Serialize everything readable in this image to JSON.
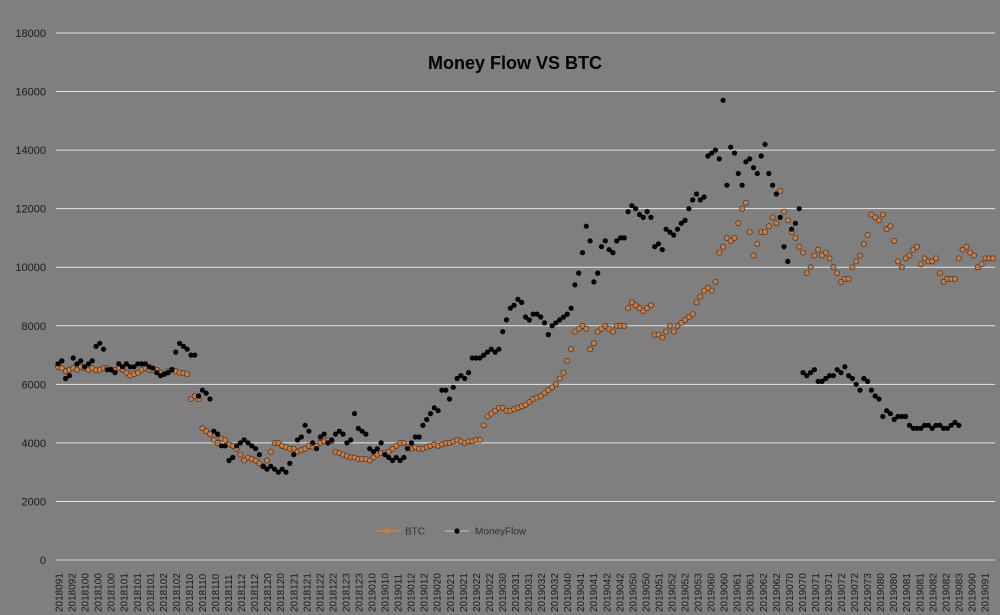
{
  "chart_data": {
    "type": "line",
    "title": "Money Flow VS BTC",
    "xlabel": "",
    "ylabel": "",
    "ylim": [
      0,
      18000
    ],
    "yticks": [
      0,
      2000,
      4000,
      6000,
      8000,
      10000,
      12000,
      14000,
      16000,
      18000
    ],
    "grid": true,
    "legend_position": "bottom-left",
    "x_tick_labels": [
      "2018091",
      "2018092",
      "2018100",
      "2018100",
      "2018100",
      "2018101",
      "2018101",
      "2018101",
      "2018102",
      "2018102",
      "2018110",
      "2018110",
      "2018110",
      "2018111",
      "2018112",
      "2018112",
      "2018120",
      "2018120",
      "2018121",
      "2018121",
      "2018122",
      "2018122",
      "2018123",
      "2018123",
      "2019010",
      "2019010",
      "2019011",
      "2019012",
      "2019012",
      "2019020",
      "2019021",
      "2019021",
      "2019022",
      "2019022",
      "2019030",
      "2019031",
      "2019031",
      "2019032",
      "2019032",
      "2019040",
      "2019041",
      "2019041",
      "2019042",
      "2019042",
      "2019050",
      "2019050",
      "2019051",
      "2019052",
      "2019052",
      "2019053",
      "2019060",
      "2019060",
      "2019061",
      "2019061",
      "2019062",
      "2019062",
      "2019070",
      "2019070",
      "2019071",
      "2019071",
      "2019072",
      "2019072",
      "2019073",
      "2019080",
      "2019080",
      "2019081",
      "2019081",
      "2019082",
      "2019082",
      "2019083",
      "2019090",
      "2019091"
    ],
    "series": [
      {
        "name": "BTC",
        "color": "#d07a3a",
        "values": [
          6600,
          6550,
          6450,
          6500,
          6550,
          6500,
          6600,
          6550,
          6500,
          6550,
          6480,
          6500,
          6550,
          6550,
          6500,
          6480,
          6550,
          6500,
          6400,
          6300,
          6350,
          6400,
          6500,
          6550,
          6500,
          6480,
          6500,
          6400,
          6350,
          6450,
          6500,
          6450,
          6400,
          6380,
          6350,
          5500,
          5600,
          5500,
          4500,
          4400,
          4300,
          4100,
          4000,
          4150,
          4100,
          3950,
          3900,
          3800,
          3600,
          3400,
          3500,
          3450,
          3400,
          3300,
          3200,
          3400,
          3700,
          4000,
          4000,
          3900,
          3850,
          3800,
          3800,
          3700,
          3750,
          3800,
          3900,
          3850,
          3900,
          4000,
          4050,
          4100,
          4050,
          3700,
          3650,
          3600,
          3550,
          3500,
          3500,
          3450,
          3450,
          3450,
          3400,
          3500,
          3600,
          3650,
          3650,
          3700,
          3800,
          3900,
          4000,
          4000,
          3850,
          3800,
          3850,
          3800,
          3800,
          3850,
          3900,
          3950,
          3900,
          3950,
          4000,
          4000,
          4050,
          4100,
          4050,
          4000,
          4050,
          4050,
          4100,
          4100,
          4600,
          4900,
          5000,
          5100,
          5200,
          5200,
          5100,
          5100,
          5150,
          5200,
          5250,
          5300,
          5400,
          5500,
          5550,
          5600,
          5700,
          5800,
          5900,
          6000,
          6200,
          6400,
          6800,
          7200,
          7800,
          7900,
          8000,
          7900,
          7200,
          7400,
          7800,
          7900,
          8000,
          7900,
          7800,
          8000,
          8000,
          8000,
          8600,
          8800,
          8700,
          8600,
          8500,
          8600,
          8700,
          7700,
          7700,
          7600,
          7800,
          8000,
          7800,
          8000,
          8100,
          8200,
          8300,
          8400,
          8800,
          9000,
          9200,
          9300,
          9200,
          9500,
          10500,
          10700,
          11000,
          10900,
          11000,
          11500,
          12000,
          12200,
          11200,
          10400,
          10800,
          11200,
          11200,
          11400,
          11700,
          11500,
          12600,
          11900,
          11600,
          11200,
          11000,
          10700,
          10500,
          9800,
          10000,
          10400,
          10600,
          10400,
          10500,
          10300,
          10000,
          9800,
          9500,
          9600,
          9600,
          10000,
          10200,
          10400,
          10800,
          11100,
          11800,
          11700,
          11600,
          11800,
          11300,
          11400,
          10900,
          10200,
          10000,
          10300,
          10400,
          10600,
          10700,
          10100,
          10300,
          10200,
          10200,
          10300,
          9800,
          9500,
          9600,
          9600,
          9600,
          10300,
          10600,
          10700,
          10500,
          10400,
          10000,
          10100,
          10300,
          10300,
          10300
        ]
      },
      {
        "name": "MoneyFlow",
        "color": "#000000",
        "values": [
          6700,
          6800,
          6200,
          6300,
          6900,
          6700,
          6800,
          6600,
          6700,
          6800,
          7300,
          7400,
          7200,
          6500,
          6500,
          6400,
          6700,
          6600,
          6700,
          6600,
          6600,
          6700,
          6700,
          6700,
          6600,
          6550,
          6400,
          6300,
          6350,
          6400,
          6500,
          7100,
          7400,
          7300,
          7200,
          7000,
          7000,
          5600,
          5800,
          5700,
          5500,
          4400,
          4300,
          3900,
          3900,
          3400,
          3500,
          3900,
          4000,
          4100,
          4000,
          3900,
          3800,
          3600,
          3200,
          3100,
          3200,
          3100,
          3000,
          3100,
          3000,
          3300,
          3600,
          4100,
          4200,
          4600,
          4400,
          4000,
          3800,
          4200,
          4300,
          4000,
          4100,
          4300,
          4400,
          4300,
          4000,
          4100,
          5000,
          4500,
          4400,
          4300,
          3800,
          3700,
          3800,
          4000,
          3600,
          3500,
          3400,
          3500,
          3400,
          3500,
          3800,
          4000,
          4200,
          4200,
          4600,
          4800,
          5000,
          5200,
          5100,
          5800,
          5800,
          5500,
          5900,
          6200,
          6300,
          6200,
          6400,
          6900,
          6900,
          6900,
          7000,
          7100,
          7200,
          7100,
          7200,
          7800,
          8200,
          8600,
          8700,
          8900,
          8800,
          8300,
          8200,
          8400,
          8400,
          8300,
          8100,
          7700,
          8000,
          8100,
          8200,
          8300,
          8400,
          8600,
          9400,
          9800,
          10500,
          11400,
          10900,
          9500,
          9800,
          10700,
          10900,
          10600,
          10500,
          10900,
          11000,
          11000,
          11900,
          12100,
          12000,
          11800,
          11700,
          11900,
          11700,
          10700,
          10800,
          10600,
          11300,
          11200,
          11100,
          11300,
          11500,
          11600,
          12000,
          12300,
          12500,
          12300,
          12400,
          13800,
          13900,
          14000,
          13700,
          15700,
          12800,
          14100,
          13900,
          13200,
          12800,
          13600,
          13700,
          13400,
          13200,
          13800,
          14200,
          13200,
          12800,
          12500,
          11700,
          10700,
          10200,
          11300,
          11500,
          12000,
          6400,
          6300,
          6400,
          6500,
          6100,
          6100,
          6200,
          6300,
          6300,
          6500,
          6400,
          6600,
          6300,
          6200,
          6000,
          5800,
          6200,
          6100,
          5800,
          5600,
          5500,
          4900,
          5100,
          5000,
          4800,
          4900,
          4900,
          4900,
          4600,
          4500,
          4500,
          4500,
          4600,
          4600,
          4500,
          4600,
          4600,
          4500,
          4500,
          4600,
          4700,
          4600
        ]
      }
    ]
  }
}
